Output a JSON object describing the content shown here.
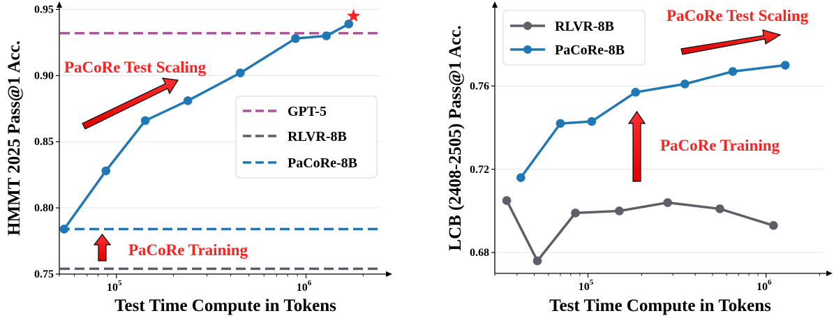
{
  "chart_data": [
    {
      "type": "line",
      "xlabel": "Test Time Compute in Tokens",
      "ylabel": "HMMT 2025 Pass@1 Acc.",
      "xscale": "log",
      "xlim": [
        50000,
        2800000
      ],
      "ylim": [
        0.75,
        0.955
      ],
      "yticks": [
        {
          "v": 0.75,
          "label": "0.75"
        },
        {
          "v": 0.8,
          "label": "0.80"
        },
        {
          "v": 0.85,
          "label": "0.85"
        },
        {
          "v": 0.9,
          "label": "0.90"
        },
        {
          "v": 0.95,
          "label": "0.95"
        }
      ],
      "xticks": [
        {
          "v": 100000,
          "base": "10",
          "exp": "5"
        },
        {
          "v": 1000000,
          "base": "10",
          "exp": "6"
        }
      ],
      "grid": "horizontal",
      "legend_position": "center-right",
      "series": [
        {
          "name": "PaCoRe-8B",
          "color": "#1f77b4",
          "x": [
            53000,
            88000,
            142000,
            238000,
            450000,
            880000,
            1280000,
            1680000
          ],
          "y": [
            0.784,
            0.828,
            0.866,
            0.881,
            0.902,
            0.928,
            0.93,
            0.939
          ]
        }
      ],
      "reference_lines": [
        {
          "name": "GPT-5",
          "value": 0.932,
          "color": "#b44d9c"
        },
        {
          "name": "RLVR-8B",
          "value": 0.754,
          "color": "#5e5e66"
        },
        {
          "name": "PaCoRe-8B",
          "value": 0.784,
          "color": "#1f77b4"
        }
      ],
      "star_marker": {
        "x": 1780000,
        "y": 0.945,
        "color": "#ff2020"
      },
      "annotations": [
        {
          "text": "PaCoRe Test Scaling",
          "color": "#ff2020"
        },
        {
          "text": "PaCoRe Training",
          "color": "#ff2020"
        }
      ]
    },
    {
      "type": "line",
      "xlabel": "Test Time Compute in Tokens",
      "ylabel": "LCB (2408-2505) Pass@1 Acc.",
      "xscale": "log",
      "xlim": [
        30000,
        2100000
      ],
      "ylim": [
        0.67,
        0.8
      ],
      "yticks": [
        {
          "v": 0.68,
          "label": "0.68"
        },
        {
          "v": 0.72,
          "label": "0.72"
        },
        {
          "v": 0.76,
          "label": "0.76"
        }
      ],
      "xticks": [
        {
          "v": 100000,
          "base": "10",
          "exp": "5"
        },
        {
          "v": 1000000,
          "base": "10",
          "exp": "6"
        }
      ],
      "grid": "horizontal",
      "legend_position": "top-left",
      "series": [
        {
          "name": "RLVR-8B",
          "color": "#5e5e66",
          "x": [
            35000,
            52000,
            85000,
            150000,
            280000,
            550000,
            1100000
          ],
          "y": [
            0.705,
            0.676,
            0.699,
            0.7,
            0.704,
            0.701,
            0.693
          ]
        },
        {
          "name": "PaCoRe-8B",
          "color": "#1f77b4",
          "x": [
            42000,
            70000,
            105000,
            185000,
            350000,
            650000,
            1280000
          ],
          "y": [
            0.716,
            0.742,
            0.743,
            0.757,
            0.761,
            0.767,
            0.77
          ]
        }
      ],
      "annotations": [
        {
          "text": "PaCoRe Test Scaling",
          "color": "#ff2020"
        },
        {
          "text": "PaCoRe Training",
          "color": "#ff2020"
        }
      ]
    }
  ]
}
